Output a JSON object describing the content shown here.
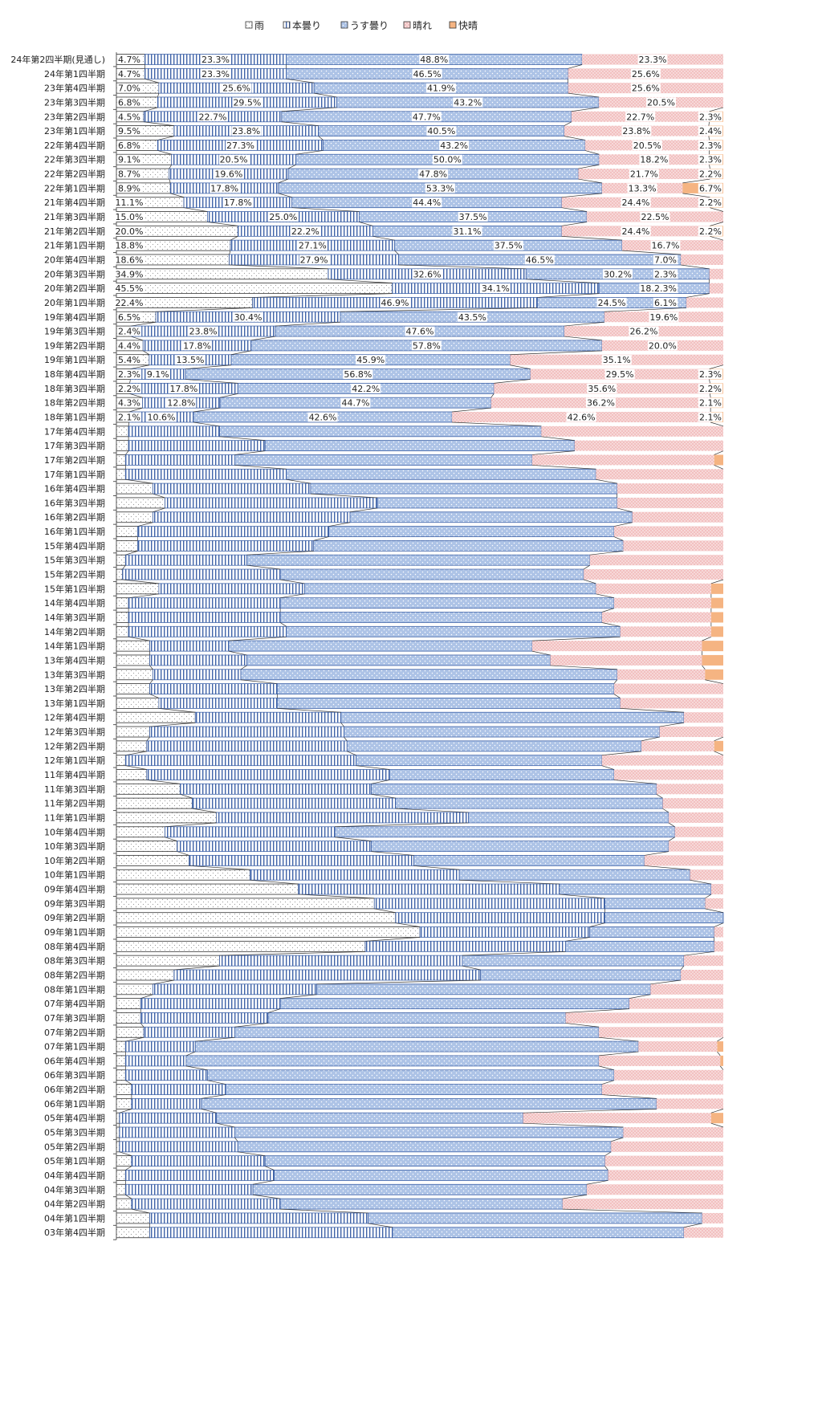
{
  "chart_data": {
    "type": "bar",
    "stacked": "percent",
    "orientation": "horizontal",
    "title": "",
    "xlabel": "",
    "ylabel": "",
    "xlim": [
      0,
      100
    ],
    "grid": false,
    "legend_position": "top",
    "colors": {
      "雨": "#ffffff",
      "本曇り": "#ffffff",
      "うす曇り": "#adc3e6",
      "晴れ": "#f2c0c0",
      "快晴": "#f5b482"
    },
    "series_names": [
      "雨",
      "本曇り",
      "うす曇り",
      "晴れ",
      "快晴"
    ],
    "categories": [
      "24年第2四半期(見通し)",
      "24年第1四半期",
      "23年第4四半期",
      "23年第3四半期",
      "23年第2四半期",
      "23年第1四半期",
      "22年第4四半期",
      "22年第3四半期",
      "22年第2四半期",
      "22年第1四半期",
      "21年第4四半期",
      "21年第3四半期",
      "21年第2四半期",
      "21年第1四半期",
      "20年第4四半期",
      "20年第3四半期",
      "20年第2四半期",
      "20年第1四半期",
      "19年第4四半期",
      "19年第3四半期",
      "19年第2四半期",
      "19年第1四半期",
      "18年第4四半期",
      "18年第3四半期",
      "18年第2四半期",
      "18年第1四半期",
      "17年第4四半期",
      "17年第3四半期",
      "17年第2四半期",
      "17年第1四半期",
      "16年第4四半期",
      "16年第3四半期",
      "16年第2四半期",
      "16年第1四半期",
      "15年第4四半期",
      "15年第3四半期",
      "15年第2四半期",
      "15年第1四半期",
      "14年第4四半期",
      "14年第3四半期",
      "14年第2四半期",
      "14年第1四半期",
      "13年第4四半期",
      "13年第3四半期",
      "13年第2四半期",
      "13年第1四半期",
      "12年第4四半期",
      "12年第3四半期",
      "12年第2四半期",
      "12年第1四半期",
      "11年第4四半期",
      "11年第3四半期",
      "11年第2四半期",
      "11年第1四半期",
      "10年第4四半期",
      "10年第3四半期",
      "10年第2四半期",
      "10年第1四半期",
      "09年第4四半期",
      "09年第3四半期",
      "09年第2四半期",
      "09年第1四半期",
      "08年第4四半期",
      "08年第3四半期",
      "08年第2四半期",
      "08年第1四半期",
      "07年第4四半期",
      "07年第3四半期",
      "07年第2四半期",
      "07年第1四半期",
      "06年第4四半期",
      "06年第3四半期",
      "06年第2四半期",
      "06年第1四半期",
      "05年第4四半期",
      "05年第3四半期",
      "05年第2四半期",
      "05年第1四半期",
      "04年第4四半期",
      "04年第3四半期",
      "04年第2四半期",
      "04年第1四半期",
      "03年第4四半期"
    ],
    "rows": [
      [
        4.7,
        23.3,
        48.8,
        23.3,
        0
      ],
      [
        4.7,
        23.3,
        46.5,
        25.6,
        0
      ],
      [
        7.0,
        25.6,
        41.9,
        25.6,
        0
      ],
      [
        6.8,
        29.5,
        43.2,
        20.5,
        0
      ],
      [
        4.5,
        22.7,
        47.7,
        22.7,
        2.3
      ],
      [
        9.5,
        23.8,
        40.5,
        23.8,
        2.4
      ],
      [
        6.8,
        27.3,
        43.2,
        20.5,
        2.3
      ],
      [
        9.1,
        20.5,
        50.0,
        18.2,
        2.3
      ],
      [
        8.7,
        19.6,
        47.8,
        21.7,
        2.2
      ],
      [
        8.9,
        17.8,
        53.3,
        13.3,
        6.7
      ],
      [
        11.1,
        17.8,
        44.4,
        24.4,
        2.2
      ],
      [
        15.0,
        25.0,
        37.5,
        22.5,
        0
      ],
      [
        20.0,
        22.2,
        31.1,
        24.4,
        2.2
      ],
      [
        18.8,
        27.1,
        37.5,
        16.7,
        0
      ],
      [
        18.6,
        27.9,
        46.5,
        7.0,
        0
      ],
      [
        34.9,
        32.6,
        30.2,
        2.3,
        0
      ],
      [
        45.5,
        34.1,
        18.2,
        2.3,
        0
      ],
      [
        22.4,
        46.9,
        24.5,
        6.1,
        0
      ],
      [
        6.5,
        30.4,
        43.5,
        19.6,
        0
      ],
      [
        2.4,
        23.8,
        47.6,
        26.2,
        0
      ],
      [
        4.4,
        17.8,
        57.8,
        20.0,
        0
      ],
      [
        5.4,
        13.5,
        45.9,
        35.1,
        0
      ],
      [
        2.3,
        9.1,
        56.8,
        29.5,
        2.3
      ],
      [
        2.2,
        17.8,
        42.2,
        35.6,
        2.2
      ],
      [
        4.3,
        12.8,
        44.7,
        36.2,
        2.1
      ],
      [
        2.1,
        10.6,
        42.6,
        42.6,
        2.1
      ],
      [
        2.0,
        15.0,
        53.0,
        30.0,
        0
      ],
      [
        2.0,
        22.5,
        51.0,
        24.5,
        0
      ],
      [
        1.5,
        18.0,
        49.0,
        30.0,
        1.5
      ],
      [
        1.5,
        26.5,
        51.0,
        21.0,
        0
      ],
      [
        6.0,
        26.0,
        50.5,
        17.5,
        0
      ],
      [
        8.0,
        35.0,
        39.5,
        17.5,
        0
      ],
      [
        6.0,
        32.5,
        46.5,
        15.0,
        0
      ],
      [
        3.5,
        31.5,
        47.0,
        18.0,
        0
      ],
      [
        3.5,
        29.0,
        51.0,
        16.5,
        0
      ],
      [
        1.5,
        20.0,
        56.5,
        22.0,
        0
      ],
      [
        1.0,
        26.0,
        50.0,
        23.0,
        0
      ],
      [
        7.0,
        24.0,
        48.0,
        19.0,
        2.0
      ],
      [
        2.0,
        25.0,
        55.0,
        16.0,
        2.0
      ],
      [
        2.0,
        25.0,
        53.0,
        18.0,
        2.0
      ],
      [
        2.0,
        26.0,
        55.0,
        15.0,
        2.0
      ],
      [
        5.5,
        13.0,
        50.0,
        28.0,
        3.5
      ],
      [
        5.5,
        16.0,
        50.0,
        25.0,
        3.5
      ],
      [
        6.0,
        14.5,
        62.0,
        14.5,
        3.0
      ],
      [
        5.5,
        21.0,
        55.5,
        18.0,
        0
      ],
      [
        7.0,
        19.5,
        56.5,
        17.0,
        0
      ],
      [
        13.0,
        24.0,
        56.5,
        6.5,
        0
      ],
      [
        5.5,
        32.0,
        52.0,
        10.5,
        0
      ],
      [
        5.0,
        33.0,
        48.5,
        12.0,
        1.5
      ],
      [
        1.5,
        38.0,
        40.5,
        20.0,
        0
      ],
      [
        5.0,
        40.0,
        37.0,
        18.0,
        0
      ],
      [
        10.5,
        31.5,
        47.0,
        11.0,
        0
      ],
      [
        12.5,
        33.5,
        44.0,
        10.0,
        0
      ],
      [
        16.5,
        41.5,
        33.0,
        9.0,
        0
      ],
      [
        8.0,
        28.0,
        56.0,
        8.0,
        0
      ],
      [
        10.0,
        32.0,
        49.0,
        9.0,
        0
      ],
      [
        12.0,
        37.0,
        38.0,
        13.0,
        0
      ],
      [
        22.0,
        34.5,
        38.0,
        5.5,
        0
      ],
      [
        30.0,
        43.0,
        25.0,
        2.0,
        0
      ],
      [
        42.5,
        38.0,
        16.5,
        3.0,
        0
      ],
      [
        46.0,
        34.5,
        19.5,
        0,
        0
      ],
      [
        50.0,
        28.0,
        20.5,
        1.5,
        0
      ],
      [
        41.0,
        33.0,
        24.5,
        1.5,
        0
      ],
      [
        17.0,
        40.0,
        36.5,
        6.5,
        0
      ],
      [
        9.5,
        50.5,
        33.0,
        7.0,
        0
      ],
      [
        6.0,
        27.0,
        55.0,
        12.0,
        0
      ],
      [
        4.0,
        23.0,
        57.5,
        15.5,
        0
      ],
      [
        4.0,
        21.0,
        49.0,
        26.0,
        0
      ],
      [
        4.5,
        15.0,
        60.0,
        20.5,
        0
      ],
      [
        1.5,
        11.5,
        73.0,
        13.0,
        1.0
      ],
      [
        1.5,
        10.0,
        68.0,
        20.0,
        0.5
      ],
      [
        1.5,
        13.5,
        67.0,
        18.0,
        0
      ],
      [
        2.5,
        15.5,
        62.0,
        20.0,
        0
      ],
      [
        2.5,
        11.5,
        75.0,
        11.0,
        0
      ],
      [
        0.5,
        16.0,
        50.5,
        31.0,
        2.0
      ],
      [
        0.5,
        19.0,
        64.0,
        16.5,
        0
      ],
      [
        0.5,
        19.5,
        61.5,
        18.5,
        0
      ],
      [
        2.5,
        22.0,
        56.0,
        19.5,
        0
      ],
      [
        1.5,
        24.5,
        55.0,
        19.0,
        0
      ],
      [
        1.5,
        21.0,
        55.0,
        22.5,
        0
      ],
      [
        2.5,
        24.5,
        46.5,
        26.5,
        0
      ],
      [
        5.5,
        36.0,
        55.0,
        3.5,
        0
      ],
      [
        5.5,
        40.0,
        48.0,
        6.5,
        0
      ]
    ],
    "labeled_rows": 26,
    "data_labels": [
      [
        "4.7%",
        "23.3%",
        "48.8%",
        "23.3%",
        ""
      ],
      [
        "4.7%",
        "23.3%",
        "46.5%",
        "25.6%",
        ""
      ],
      [
        "7.0%",
        "25.6%",
        "41.9%",
        "25.6%",
        ""
      ],
      [
        "6.8%",
        "29.5%",
        "43.2%",
        "20.5%",
        ""
      ],
      [
        "4.5%",
        "22.7%",
        "47.7%",
        "22.7%",
        "2.3%"
      ],
      [
        "9.5%",
        "23.8%",
        "40.5%",
        "23.8%",
        "2.4%"
      ],
      [
        "6.8%",
        "27.3%",
        "43.2%",
        "20.5%",
        "2.3%"
      ],
      [
        "9.1%",
        "20.5%",
        "50.0%",
        "18.2%",
        "2.3%"
      ],
      [
        "8.7%",
        "19.6%",
        "47.8%",
        "21.7%",
        "2.2%"
      ],
      [
        "8.9%",
        "17.8%",
        "53.3%",
        "13.3%",
        "6.7%"
      ],
      [
        "11.1%",
        "17.8%",
        "44.4%",
        "24.4%",
        "2.2%"
      ],
      [
        "15.0%",
        "25.0%",
        "37.5%",
        "22.5%",
        ""
      ],
      [
        "20.0%",
        "22.2%",
        "31.1%",
        "24.4%",
        "2.2%"
      ],
      [
        "18.8%",
        "27.1%",
        "37.5%",
        "16.7%",
        ""
      ],
      [
        "18.6%",
        "27.9%",
        "46.5%",
        "7.0%",
        ""
      ],
      [
        "34.9%",
        "32.6%",
        "30.2%",
        "2.3%",
        ""
      ],
      [
        "45.5%",
        "34.1%",
        "18.2%",
        "2.3%",
        ""
      ],
      [
        "22.4%",
        "46.9%",
        "24.5%",
        "6.1%",
        ""
      ],
      [
        "6.5%",
        "30.4%",
        "43.5%",
        "19.6%",
        ""
      ],
      [
        "2.4%",
        "23.8%",
        "47.6%",
        "26.2%",
        ""
      ],
      [
        "4.4%",
        "17.8%",
        "57.8%",
        "20.0%",
        ""
      ],
      [
        "5.4%",
        "13.5%",
        "45.9%",
        "35.1%",
        ""
      ],
      [
        "2.3%",
        "9.1%",
        "56.8%",
        "29.5%",
        "2.3%"
      ],
      [
        "2.2%",
        "17.8%",
        "42.2%",
        "35.6%",
        "2.2%"
      ],
      [
        "4.3%",
        "12.8%",
        "44.7%",
        "36.2%",
        "2.1%"
      ],
      [
        "2.1%",
        "10.6%",
        "42.6%",
        "42.6%",
        "2.1%"
      ]
    ]
  }
}
